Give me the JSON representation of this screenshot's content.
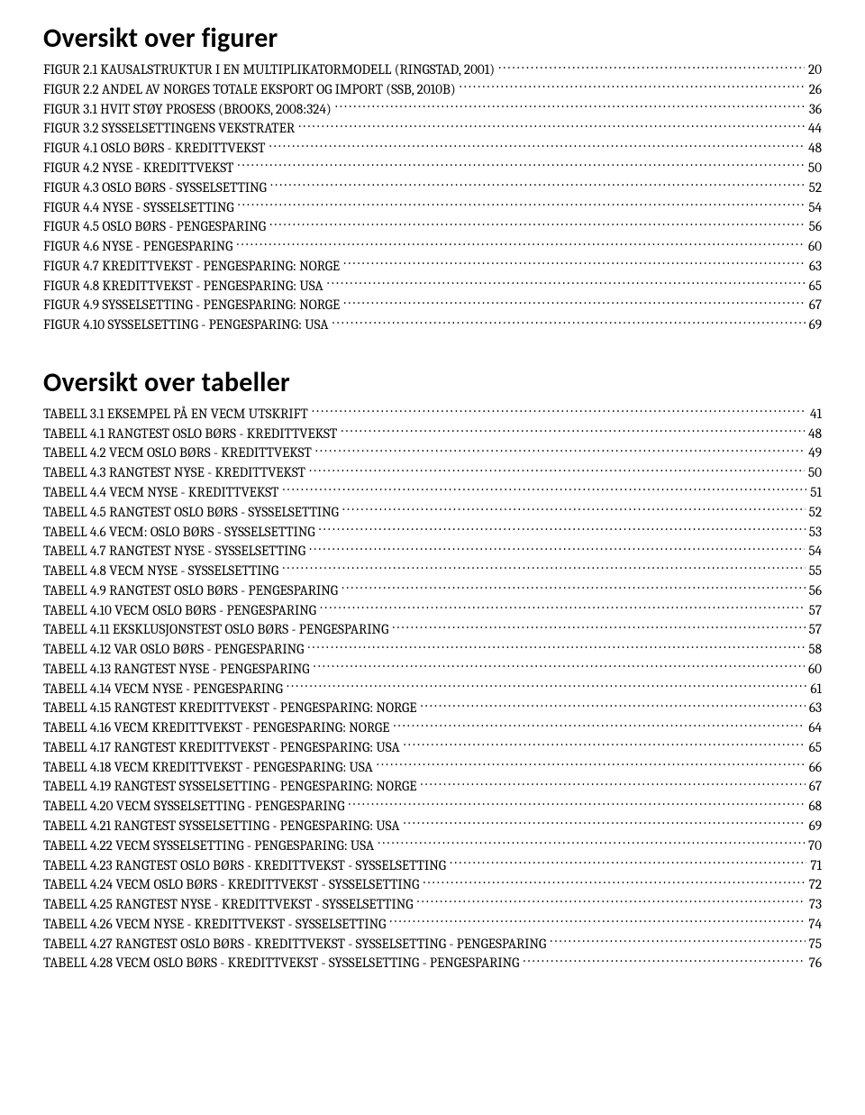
{
  "figures": {
    "title": "Oversikt over figurer",
    "items": [
      {
        "label": "FIGUR 2.1 KAUSALSTRUKTUR I EN MULTIPLIKATORMODELL (RINGSTAD, 2001)",
        "page": "20"
      },
      {
        "label": "FIGUR 2.2 ANDEL AV NORGES TOTALE EKSPORT OG IMPORT (SSB, 2010B)",
        "page": "26"
      },
      {
        "label": "FIGUR 3.1 HVIT STØY PROSESS (BROOKS, 2008:324)",
        "page": "36"
      },
      {
        "label": "FIGUR 3.2 SYSSELSETTINGENS VEKSTRATER",
        "page": "44"
      },
      {
        "label": "FIGUR 4.1 OSLO BØRS - KREDITTVEKST",
        "page": "48"
      },
      {
        "label": "FIGUR 4.2 NYSE - KREDITTVEKST",
        "page": "50"
      },
      {
        "label": "FIGUR 4.3 OSLO BØRS - SYSSELSETTING",
        "page": "52"
      },
      {
        "label": "FIGUR 4.4 NYSE - SYSSELSETTING",
        "page": "54"
      },
      {
        "label": "FIGUR 4.5 OSLO BØRS - PENGESPARING",
        "page": "56"
      },
      {
        "label": "FIGUR 4.6 NYSE -  PENGESPARING",
        "page": "60"
      },
      {
        "label": "FIGUR 4.7 KREDITTVEKST - PENGESPARING: NORGE",
        "page": "63"
      },
      {
        "label": "FIGUR 4.8 KREDITTVEKST - PENGESPARING: USA",
        "page": "65"
      },
      {
        "label": "FIGUR 4.9 SYSSELSETTING - PENGESPARING: NORGE",
        "page": "67"
      },
      {
        "label": "FIGUR 4.10 SYSSELSETTING - PENGESPARING: USA",
        "page": "69"
      }
    ]
  },
  "tables": {
    "title": "Oversikt over tabeller",
    "items": [
      {
        "label": "TABELL 3.1 EKSEMPEL PÅ EN VECM UTSKRIFT",
        "page": "41"
      },
      {
        "label": "TABELL 4.1 RANGTEST OSLO BØRS - KREDITTVEKST",
        "page": "48"
      },
      {
        "label": "TABELL 4.2 VECM OSLO BØRS - KREDITTVEKST",
        "page": "49"
      },
      {
        "label": "TABELL 4.3 RANGTEST NYSE - KREDITTVEKST",
        "page": "50"
      },
      {
        "label": "TABELL 4.4 VECM NYSE - KREDITTVEKST",
        "page": "51"
      },
      {
        "label": "TABELL 4.5 RANGTEST OSLO BØRS - SYSSELSETTING",
        "page": "52"
      },
      {
        "label": "TABELL 4.6 VECM: OSLO BØRS - SYSSELSETTING",
        "page": "53"
      },
      {
        "label": "TABELL 4.7 RANGTEST NYSE - SYSSELSETTING",
        "page": "54"
      },
      {
        "label": "TABELL 4.8 VECM NYSE - SYSSELSETTING",
        "page": "55"
      },
      {
        "label": "TABELL 4.9 RANGTEST OSLO BØRS - PENGESPARING",
        "page": "56"
      },
      {
        "label": "TABELL 4.10 VECM OSLO BØRS - PENGESPARING",
        "page": "57"
      },
      {
        "label": "TABELL 4.11 EKSKLUSJONSTEST OSLO BØRS - PENGESPARING",
        "page": "57"
      },
      {
        "label": "TABELL 4.12 VAR OSLO BØRS - PENGESPARING",
        "page": "58"
      },
      {
        "label": "TABELL 4.13 RANGTEST NYSE - PENGESPARING",
        "page": "60"
      },
      {
        "label": "TABELL 4.14 VECM NYSE - PENGESPARING",
        "page": "61"
      },
      {
        "label": "TABELL 4.15 RANGTEST KREDITTVEKST - PENGESPARING: NORGE",
        "page": "63"
      },
      {
        "label": "TABELL 4.16 VECM KREDITTVEKST - PENGESPARING: NORGE",
        "page": "64"
      },
      {
        "label": "TABELL 4.17 RANGTEST KREDITTVEKST - PENGESPARING: USA",
        "page": "65"
      },
      {
        "label": "TABELL 4.18 VECM KREDITTVEKST - PENGESPARING: USA",
        "page": "66"
      },
      {
        "label": "TABELL 4.19 RANGTEST SYSSELSETTING - PENGESPARING: NORGE",
        "page": "67"
      },
      {
        "label": "TABELL 4.20 VECM SYSSELSETTING - PENGESPARING",
        "page": "68"
      },
      {
        "label": "TABELL 4.21 RANGTEST SYSSELSETTING - PENGESPARING: USA",
        "page": "69"
      },
      {
        "label": "TABELL 4.22 VECM SYSSELSETTING - PENGESPARING: USA",
        "page": "70"
      },
      {
        "label": "TABELL 4.23 RANGTEST OSLO BØRS - KREDITTVEKST - SYSSELSETTING",
        "page": "71"
      },
      {
        "label": "TABELL 4.24 VECM OSLO BØRS - KREDITTVEKST - SYSSELSETTING",
        "page": "72"
      },
      {
        "label": "TABELL 4.25 RANGTEST NYSE - KREDITTVEKST - SYSSELSETTING",
        "page": "73"
      },
      {
        "label": "TABELL 4.26 VECM NYSE - KREDITTVEKST - SYSSELSETTING",
        "page": "74"
      },
      {
        "label": "TABELL 4.27 RANGTEST OSLO BØRS - KREDITTVEKST - SYSSELSETTING - PENGESPARING",
        "page": "75"
      },
      {
        "label": "TABELL 4.28 VECM OSLO BØRS - KREDITTVEKST - SYSSELSETTING - PENGESPARING",
        "page": "76"
      }
    ]
  }
}
